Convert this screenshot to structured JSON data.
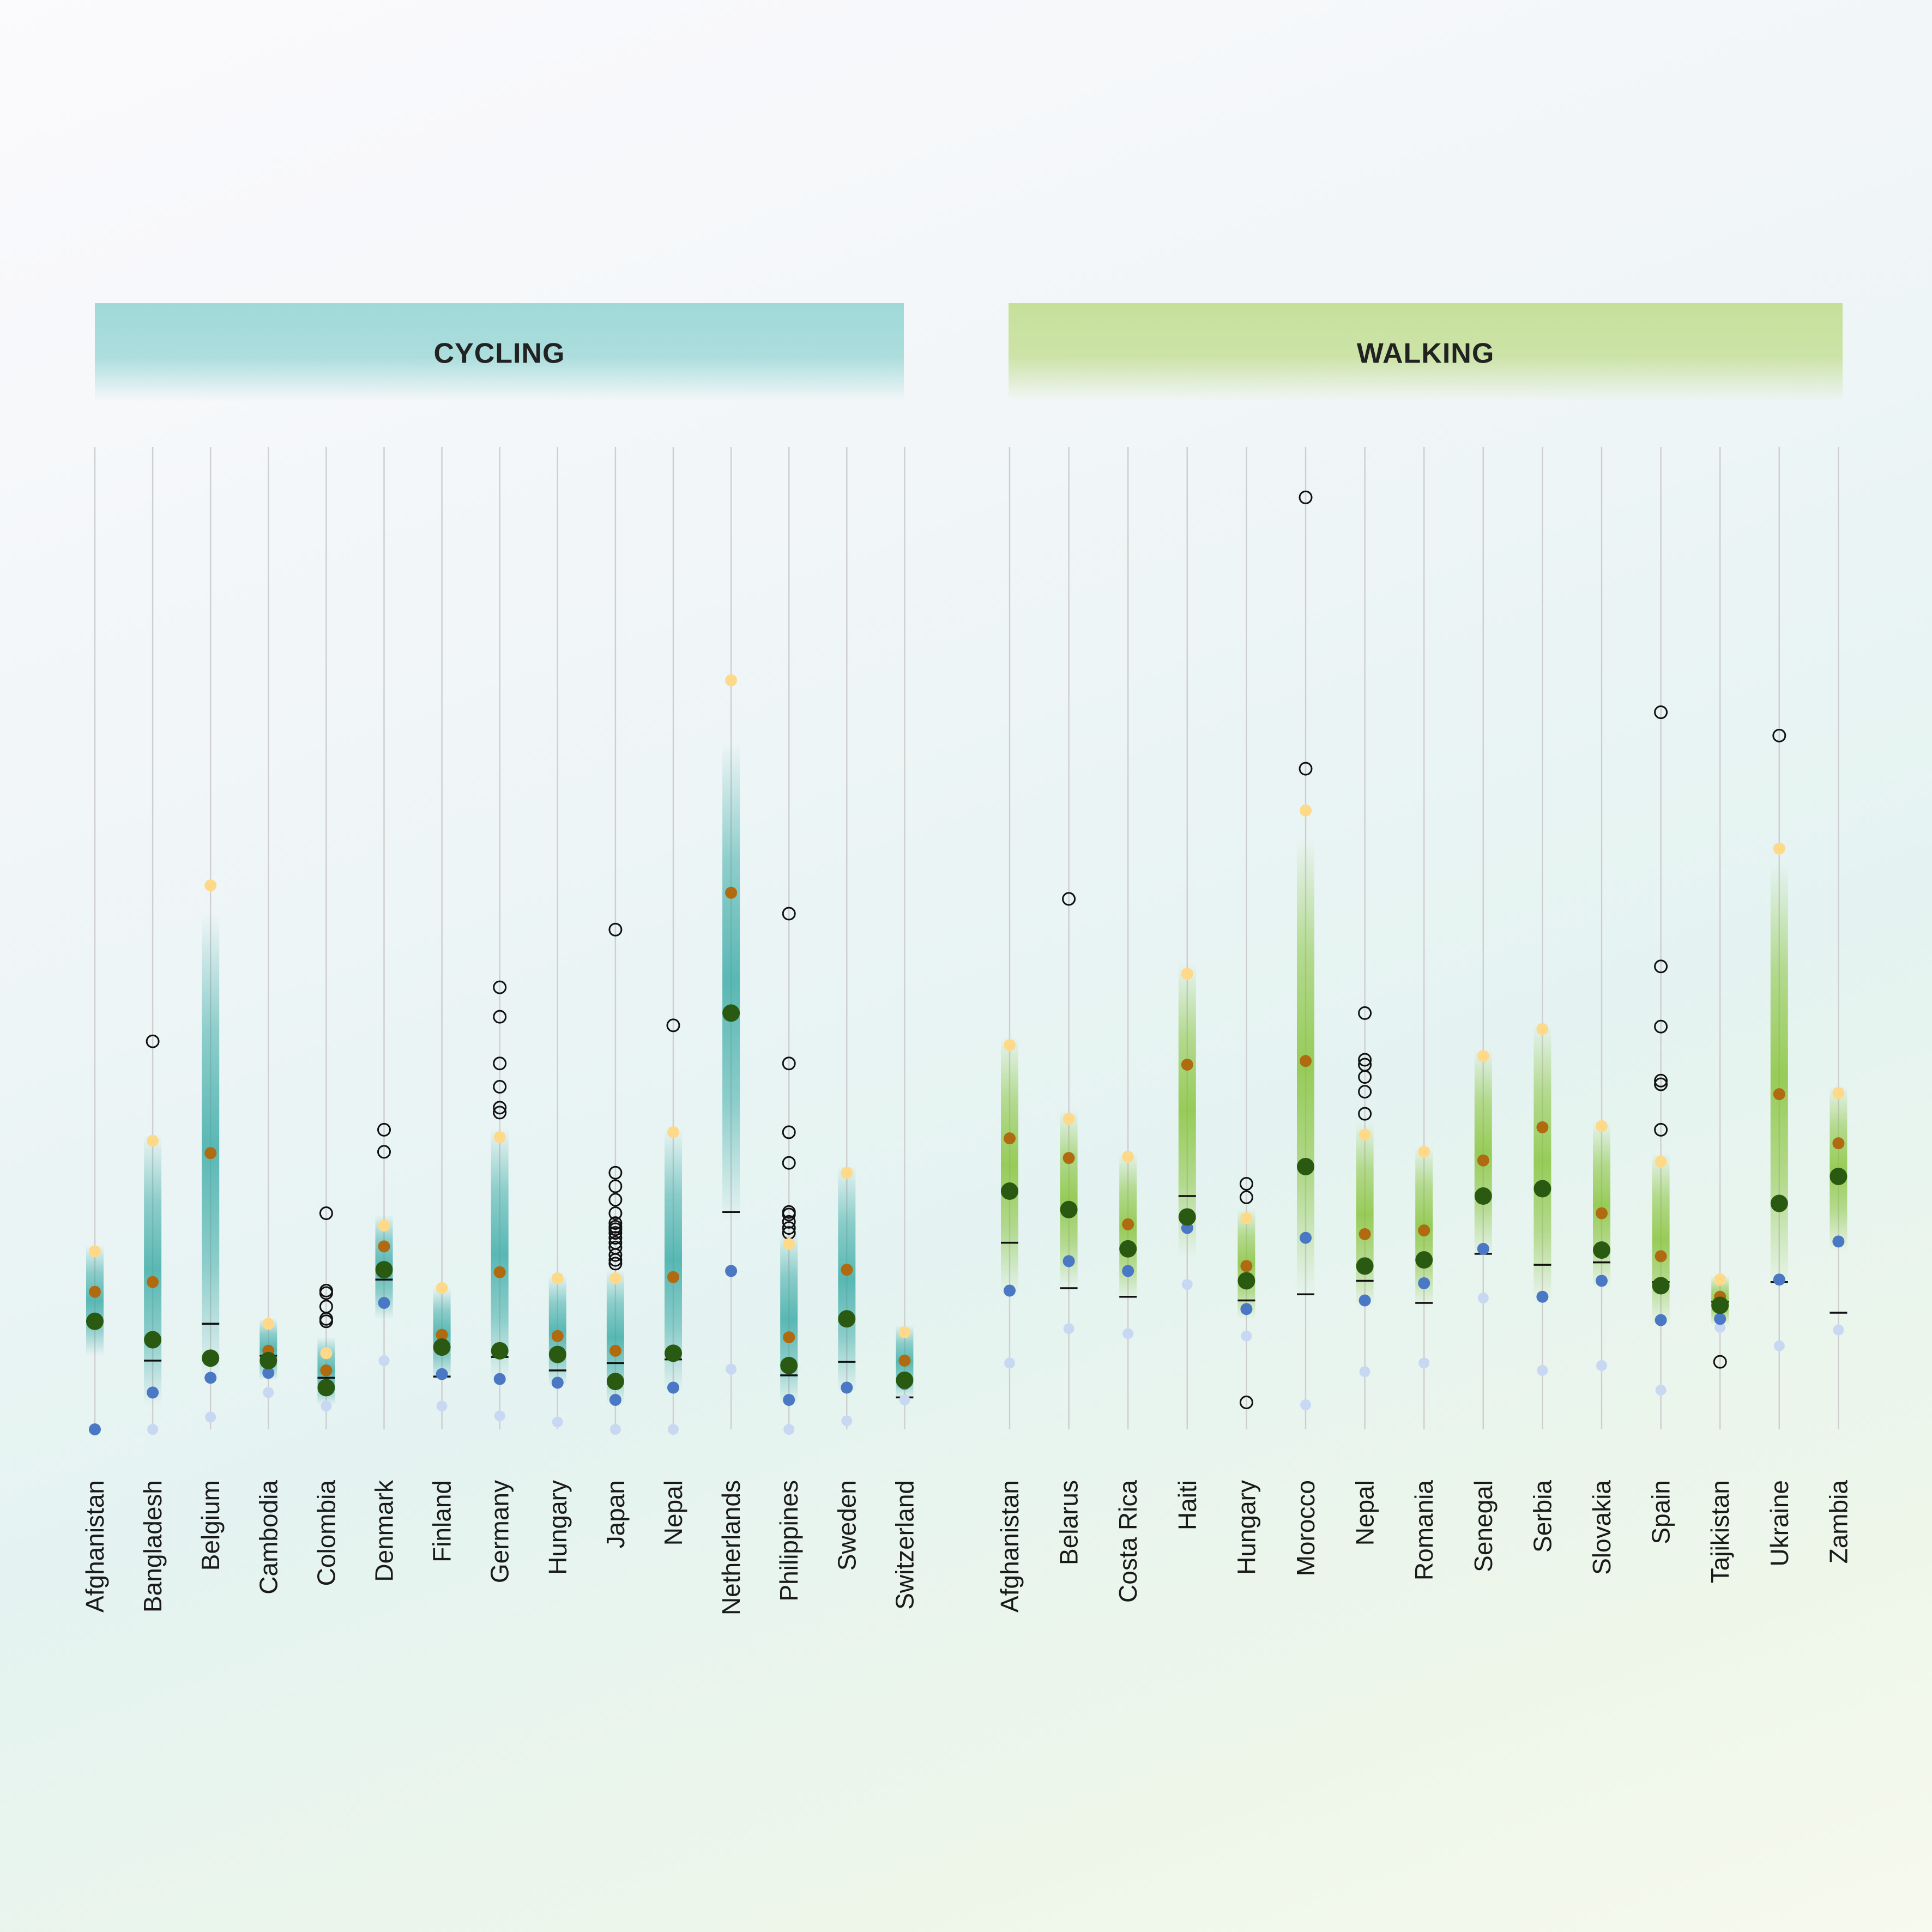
{
  "colors": {
    "cycling_banner": "#9fd9d8",
    "walking_banner": "#c6e09a",
    "cycling_band": "#2ea5a0",
    "walking_band": "#7fbf2a",
    "gridline": "#cfcfcf",
    "p_very_low": "#c9d8f2",
    "p_low": "#4a78c4",
    "p_center": "#2a5a12",
    "p_high": "#b06a10",
    "p_very_high": "#ffd98a",
    "outlier": "#111111",
    "median_tick": "#111111"
  },
  "chart_data": {
    "type": "scatter",
    "description": "Vertical percentile strips per country (unlabeled y axis, values in relative units 0-800 increasing upward)",
    "ylim": [
      0,
      800
    ],
    "legend": [],
    "panels": [
      {
        "title": "CYCLING",
        "band_color_key": "cycling_band",
        "countries": [
          {
            "name": "Afghanistan",
            "very_low": 0,
            "low": 0,
            "center": 88,
            "high": 112,
            "very_high": 145,
            "median": 88,
            "band": [
              60,
              150
            ],
            "outliers": []
          },
          {
            "name": "Bangladesh",
            "very_low": 0,
            "low": 30,
            "center": 73,
            "high": 120,
            "very_high": 235,
            "median": 56,
            "band": [
              20,
              240
            ],
            "outliers": [
              316
            ]
          },
          {
            "name": "Belgium",
            "very_low": 10,
            "low": 42,
            "center": 58,
            "high": 225,
            "very_high": 443,
            "median": 86,
            "band": [
              40,
              420
            ],
            "outliers": []
          },
          {
            "name": "Cambodia",
            "very_low": 30,
            "low": 46,
            "center": 56,
            "high": 64,
            "very_high": 86,
            "median": 60,
            "band": [
              40,
              90
            ],
            "outliers": []
          },
          {
            "name": "Colombia",
            "very_low": 19,
            "low": 34,
            "center": 34,
            "high": 48,
            "very_high": 62,
            "median": 42,
            "band": [
              20,
              75
            ],
            "outliers": [
              88,
              90,
              100,
              111,
              113,
              176
            ]
          },
          {
            "name": "Denmark",
            "very_low": 56,
            "low": 103,
            "center": 130,
            "high": 149,
            "very_high": 166,
            "median": 122,
            "band": [
              90,
              175
            ],
            "outliers": [
              226,
              244
            ]
          },
          {
            "name": "Finland",
            "very_low": 19,
            "low": 45,
            "center": 67,
            "high": 77,
            "very_high": 115,
            "median": 43,
            "band": [
              40,
              115
            ],
            "outliers": []
          },
          {
            "name": "Germany",
            "very_low": 11,
            "low": 41,
            "center": 64,
            "high": 128,
            "very_high": 238,
            "median": 59,
            "band": [
              40,
              245
            ],
            "outliers": [
              258,
              262,
              279,
              298,
              336,
              360
            ]
          },
          {
            "name": "Hungary",
            "very_low": 6,
            "low": 38,
            "center": 61,
            "high": 76,
            "very_high": 123,
            "median": 48,
            "band": [
              35,
              125
            ],
            "outliers": []
          },
          {
            "name": "Japan",
            "very_low": 0,
            "low": 24,
            "center": 39,
            "high": 64,
            "very_high": 123,
            "median": 54,
            "band": [
              20,
              130
            ],
            "outliers": [
              135,
              138,
              142,
              148,
              152,
              156,
              160,
              163,
              165,
              168,
              176,
              187,
              198,
              209,
              407
            ]
          },
          {
            "name": "Nepal",
            "very_low": 0,
            "low": 34,
            "center": 62,
            "high": 124,
            "very_high": 242,
            "median": 57,
            "band": [
              30,
              245
            ],
            "outliers": [
              329
            ]
          },
          {
            "name": "Netherlands",
            "very_low": 49,
            "low": 129,
            "center": 339,
            "high": 437,
            "very_high": 610,
            "median": 177,
            "band": [
              170,
              560
            ],
            "outliers": []
          },
          {
            "name": "Philippines",
            "very_low": 0,
            "low": 24,
            "center": 52,
            "high": 75,
            "very_high": 151,
            "median": 44,
            "band": [
              20,
              160
            ],
            "outliers": [
              160,
              164,
              169,
              175,
              177,
              217,
              242,
              298,
              420
            ]
          },
          {
            "name": "Sweden",
            "very_low": 7,
            "low": 34,
            "center": 90,
            "high": 130,
            "very_high": 209,
            "median": 55,
            "band": [
              30,
              215
            ],
            "outliers": []
          },
          {
            "name": "Switzerland",
            "very_low": 24,
            "low": 37,
            "center": 40,
            "high": 56,
            "very_high": 79,
            "median": 26,
            "band": [
              25,
              85
            ],
            "outliers": []
          }
        ]
      },
      {
        "title": "WALKING",
        "band_color_key": "walking_band",
        "countries": [
          {
            "name": "Afghanistan",
            "very_low": 54,
            "low": 113,
            "center": 194,
            "high": 237,
            "very_high": 313,
            "median": 152,
            "band": [
              110,
              320
            ],
            "outliers": []
          },
          {
            "name": "Belarus",
            "very_low": 82,
            "low": 137,
            "center": 179,
            "high": 221,
            "very_high": 253,
            "median": 115,
            "band": [
              115,
              260
            ],
            "outliers": [
              432
            ]
          },
          {
            "name": "Costa Rica",
            "very_low": 78,
            "low": 129,
            "center": 147,
            "high": 167,
            "very_high": 222,
            "median": 108,
            "band": [
              105,
              225
            ],
            "outliers": []
          },
          {
            "name": "Haiti",
            "very_low": 118,
            "low": 164,
            "center": 173,
            "high": 297,
            "very_high": 371,
            "median": 190,
            "band": [
              140,
              380
            ],
            "outliers": []
          },
          {
            "name": "Hungary",
            "very_low": 76,
            "low": 98,
            "center": 121,
            "high": 133,
            "very_high": 172,
            "median": 105,
            "band": [
              90,
              180
            ],
            "outliers": [
              22,
              189,
              200
            ]
          },
          {
            "name": "Morocco",
            "very_low": 20,
            "low": 156,
            "center": 214,
            "high": 300,
            "very_high": 504,
            "median": 110,
            "band": [
              110,
              480
            ],
            "outliers": [
              538,
              759
            ]
          },
          {
            "name": "Nepal",
            "very_low": 47,
            "low": 105,
            "center": 133,
            "high": 159,
            "very_high": 240,
            "median": 121,
            "band": [
              100,
              250
            ],
            "outliers": [
              257,
              275,
              287,
              297,
              301,
              339
            ]
          },
          {
            "name": "Romania",
            "very_low": 54,
            "low": 119,
            "center": 138,
            "high": 162,
            "very_high": 226,
            "median": 103,
            "band": [
              100,
              230
            ],
            "outliers": []
          },
          {
            "name": "Senegal",
            "very_low": 107,
            "low": 147,
            "center": 190,
            "high": 219,
            "very_high": 304,
            "median": 143,
            "band": [
              140,
              310
            ],
            "outliers": []
          },
          {
            "name": "Serbia",
            "very_low": 48,
            "low": 108,
            "center": 196,
            "high": 246,
            "very_high": 326,
            "median": 134,
            "band": [
              105,
              330
            ],
            "outliers": []
          },
          {
            "name": "Slovakia",
            "very_low": 52,
            "low": 121,
            "center": 146,
            "high": 176,
            "very_high": 247,
            "median": 136,
            "band": [
              115,
              250
            ],
            "outliers": []
          },
          {
            "name": "Spain",
            "very_low": 32,
            "low": 89,
            "center": 117,
            "high": 141,
            "very_high": 218,
            "median": 120,
            "band": [
              85,
              225
            ],
            "outliers": [
              244,
              281,
              284,
              328,
              377,
              584
            ]
          },
          {
            "name": "Tajikistan",
            "very_low": 83,
            "low": 90,
            "center": 101,
            "high": 108,
            "very_high": 122,
            "median": 104,
            "band": [
              85,
              125
            ],
            "outliers": [
              55
            ]
          },
          {
            "name": "Ukraine",
            "very_low": 68,
            "low": 122,
            "center": 184,
            "high": 273,
            "very_high": 473,
            "median": 120,
            "band": [
              115,
              460
            ],
            "outliers": [
              565
            ]
          },
          {
            "name": "Zambia",
            "very_low": 81,
            "low": 153,
            "center": 206,
            "high": 233,
            "very_high": 274,
            "median": 95,
            "band": [
              145,
              280
            ],
            "outliers": []
          }
        ]
      }
    ]
  }
}
